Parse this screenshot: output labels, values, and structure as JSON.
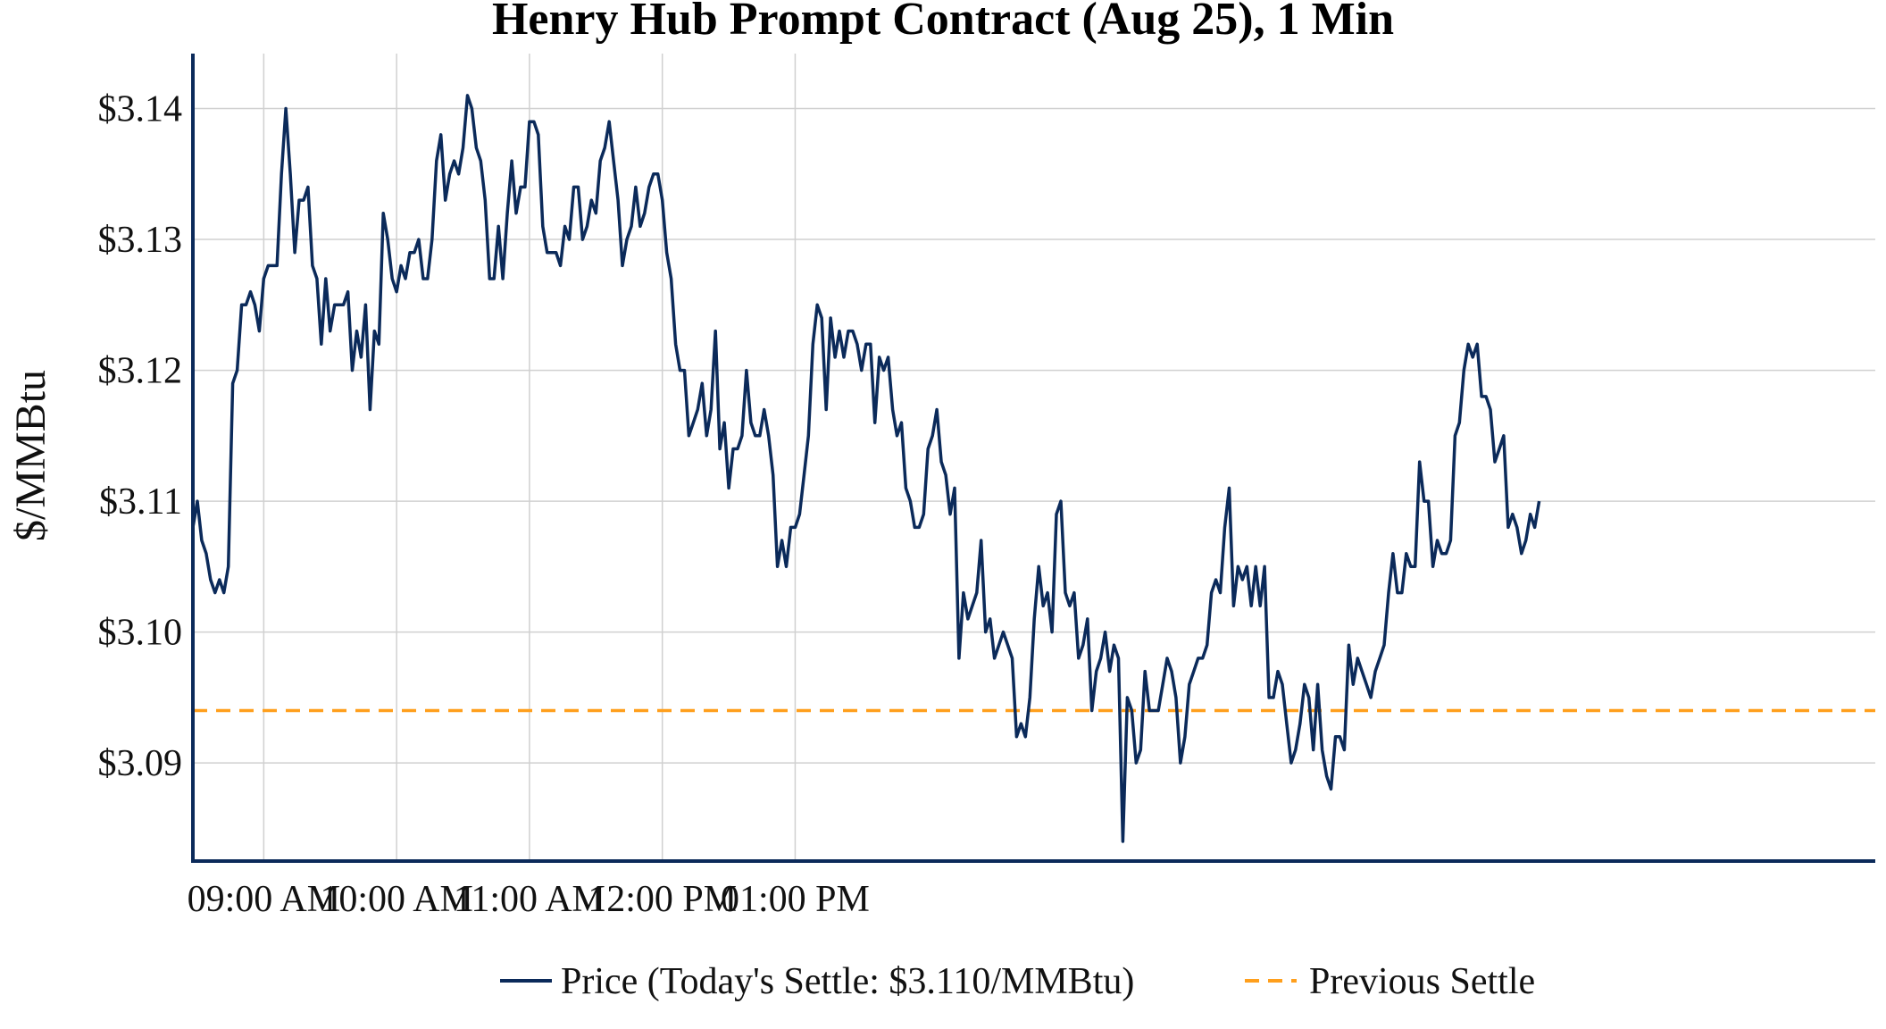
{
  "chart_data": {
    "type": "line",
    "title": "Henry Hub Prompt Contract (Aug 25), 1 Min",
    "ylabel": "$/MMBtu",
    "xlabel": "",
    "ylim": [
      3.0825,
      3.1442
    ],
    "xlim_minutes": [
      0,
      759.8
    ],
    "y_ticks": [
      3.09,
      3.1,
      3.11,
      3.12,
      3.13,
      3.14
    ],
    "y_tick_labels": [
      "$3.09",
      "$3.10",
      "$3.11",
      "$3.12",
      "$3.13",
      "$3.14"
    ],
    "x_ticks": [
      "09:00 AM",
      "10:00 AM",
      "11:00 AM",
      "12:00 PM",
      "01:00 PM"
    ],
    "grid": true,
    "legend_position": "bottom-center",
    "previous_settle": 3.094,
    "colors": {
      "price": "#0b2a5a",
      "previous_settle": "#ff9f1c",
      "grid": "#d0d0d0"
    },
    "series": [
      {
        "name": "Price (Today's Settle: $3.110/MMBtu)",
        "start_time": "08:28 AM",
        "interval_minutes": 2,
        "values": [
          3.108,
          3.11,
          3.107,
          3.106,
          3.104,
          3.103,
          3.104,
          3.103,
          3.105,
          3.119,
          3.12,
          3.125,
          3.125,
          3.126,
          3.125,
          3.123,
          3.127,
          3.128,
          3.128,
          3.128,
          3.135,
          3.14,
          3.135,
          3.129,
          3.133,
          3.133,
          3.134,
          3.128,
          3.127,
          3.122,
          3.127,
          3.123,
          3.125,
          3.125,
          3.125,
          3.126,
          3.12,
          3.123,
          3.121,
          3.125,
          3.117,
          3.123,
          3.122,
          3.132,
          3.13,
          3.127,
          3.126,
          3.128,
          3.127,
          3.129,
          3.129,
          3.13,
          3.127,
          3.127,
          3.13,
          3.136,
          3.138,
          3.133,
          3.135,
          3.136,
          3.135,
          3.137,
          3.141,
          3.14,
          3.137,
          3.136,
          3.133,
          3.127,
          3.127,
          3.131,
          3.127,
          3.132,
          3.136,
          3.132,
          3.134,
          3.134,
          3.139,
          3.139,
          3.138,
          3.131,
          3.129,
          3.129,
          3.129,
          3.128,
          3.131,
          3.13,
          3.134,
          3.134,
          3.13,
          3.131,
          3.133,
          3.132,
          3.136,
          3.137,
          3.139,
          3.136,
          3.133,
          3.128,
          3.13,
          3.131,
          3.134,
          3.131,
          3.132,
          3.134,
          3.135,
          3.135,
          3.133,
          3.129,
          3.127,
          3.122,
          3.12,
          3.12,
          3.115,
          3.116,
          3.117,
          3.119,
          3.115,
          3.117,
          3.123,
          3.114,
          3.116,
          3.111,
          3.114,
          3.114,
          3.115,
          3.12,
          3.116,
          3.115,
          3.115,
          3.117,
          3.115,
          3.112,
          3.105,
          3.107,
          3.105,
          3.108,
          3.108,
          3.109,
          3.112,
          3.115,
          3.122,
          3.125,
          3.124,
          3.117,
          3.124,
          3.121,
          3.123,
          3.121,
          3.123,
          3.123,
          3.122,
          3.12,
          3.122,
          3.122,
          3.116,
          3.121,
          3.12,
          3.121,
          3.117,
          3.115,
          3.116,
          3.111,
          3.11,
          3.108,
          3.108,
          3.109,
          3.114,
          3.115,
          3.117,
          3.113,
          3.112,
          3.109,
          3.111,
          3.098,
          3.103,
          3.101,
          3.102,
          3.103,
          3.107,
          3.1,
          3.101,
          3.098,
          3.099,
          3.1,
          3.099,
          3.098,
          3.092,
          3.093,
          3.092,
          3.095,
          3.101,
          3.105,
          3.102,
          3.103,
          3.1,
          3.109,
          3.11,
          3.103,
          3.102,
          3.103,
          3.098,
          3.099,
          3.101,
          3.094,
          3.097,
          3.098,
          3.1,
          3.097,
          3.099,
          3.098,
          3.084,
          3.095,
          3.094,
          3.09,
          3.091,
          3.097,
          3.094,
          3.094,
          3.094,
          3.096,
          3.098,
          3.097,
          3.095,
          3.09,
          3.092,
          3.096,
          3.097,
          3.098,
          3.098,
          3.099,
          3.103,
          3.104,
          3.103,
          3.108,
          3.111,
          3.102,
          3.105,
          3.104,
          3.105,
          3.102,
          3.105,
          3.102,
          3.105,
          3.095,
          3.095,
          3.097,
          3.096,
          3.093,
          3.09,
          3.091,
          3.093,
          3.096,
          3.095,
          3.091,
          3.096,
          3.091,
          3.089,
          3.088,
          3.092,
          3.092,
          3.091,
          3.099,
          3.096,
          3.098,
          3.097,
          3.096,
          3.095,
          3.097,
          3.098,
          3.099,
          3.103,
          3.106,
          3.103,
          3.103,
          3.106,
          3.105,
          3.105,
          3.113,
          3.11,
          3.11,
          3.105,
          3.107,
          3.106,
          3.106,
          3.107,
          3.115,
          3.116,
          3.12,
          3.122,
          3.121,
          3.122,
          3.118,
          3.118,
          3.117,
          3.113,
          3.114,
          3.115,
          3.108,
          3.109,
          3.108,
          3.106,
          3.107,
          3.109,
          3.108,
          3.11
        ]
      },
      {
        "name": "Previous Settle",
        "value": 3.094
      }
    ]
  }
}
